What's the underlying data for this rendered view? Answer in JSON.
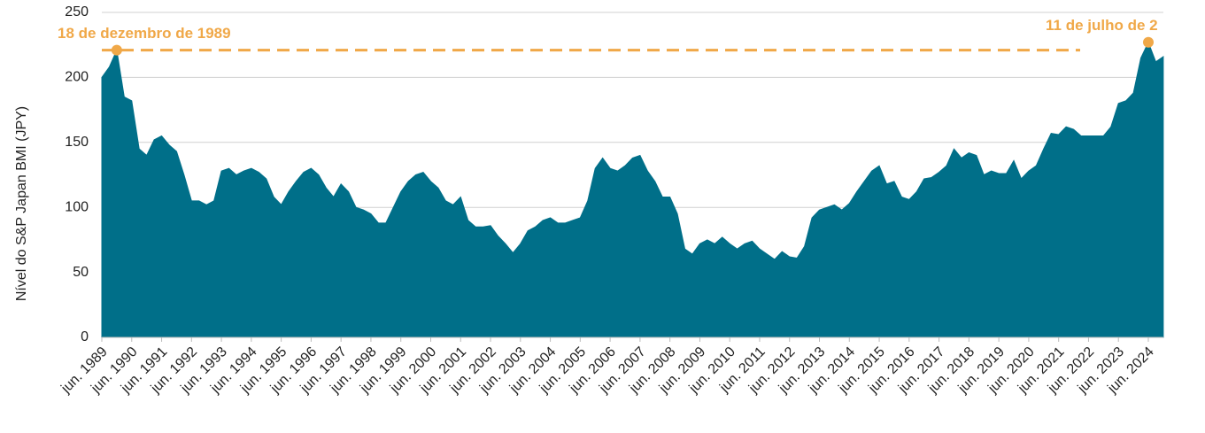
{
  "chart_data": {
    "type": "area",
    "y_label": "Nível do S&P Japan BMI (JPY)",
    "color": "#006f89",
    "annotation_color": "#f0a848",
    "grid": true,
    "ylim": [
      0,
      250
    ],
    "yticks": [
      0,
      50,
      100,
      150,
      200,
      250
    ],
    "reference_line": 221,
    "annotations": [
      {
        "text": "18 de dezembro de 1989",
        "value": 221
      },
      {
        "text": "11 de julho de 2",
        "value": 227
      }
    ],
    "categories": [
      "jun. 1989",
      null,
      null,
      null,
      "jun. 1990",
      null,
      null,
      null,
      "jun. 1991",
      null,
      null,
      null,
      "jun. 1992",
      null,
      null,
      null,
      "jun. 1993",
      null,
      null,
      null,
      "jun. 1994",
      null,
      null,
      null,
      "jun. 1995",
      null,
      null,
      null,
      "jun. 1996",
      null,
      null,
      null,
      "jun. 1997",
      null,
      null,
      null,
      "jun. 1998",
      null,
      null,
      null,
      "jun. 1999",
      null,
      null,
      null,
      "jun. 2000",
      null,
      null,
      null,
      "jun. 2001",
      null,
      null,
      null,
      "jun. 2002",
      null,
      null,
      null,
      "jun. 2003",
      null,
      null,
      null,
      "jun. 2004",
      null,
      null,
      null,
      "jun. 2005",
      null,
      null,
      null,
      "jun. 2006",
      null,
      null,
      null,
      "jun. 2007",
      null,
      null,
      null,
      "jun. 2008",
      null,
      null,
      null,
      "jun. 2009",
      null,
      null,
      null,
      "jun. 2010",
      null,
      null,
      null,
      "jun. 2011",
      null,
      null,
      null,
      "jun. 2012",
      null,
      null,
      null,
      "jun. 2013",
      null,
      null,
      null,
      "jun. 2014",
      null,
      null,
      null,
      "jun. 2015",
      null,
      null,
      null,
      "jun. 2016",
      null,
      null,
      null,
      "jun. 2017",
      null,
      null,
      null,
      "jun. 2018",
      null,
      null,
      null,
      "jun. 2019",
      null,
      null,
      null,
      "jun. 2020",
      null,
      null,
      null,
      "jun. 2021",
      null,
      null,
      null,
      "jun. 2022",
      null,
      null,
      null,
      "jun. 2023",
      null,
      null,
      null,
      "jun. 2024",
      null,
      null
    ],
    "values": [
      200,
      208,
      221,
      185,
      182,
      145,
      140,
      152,
      155,
      148,
      143,
      125,
      105,
      105,
      102,
      105,
      128,
      130,
      125,
      128,
      130,
      127,
      122,
      108,
      102,
      112,
      120,
      127,
      130,
      125,
      115,
      108,
      118,
      112,
      100,
      98,
      95,
      88,
      88,
      100,
      112,
      120,
      125,
      127,
      120,
      115,
      105,
      102,
      108,
      90,
      85,
      85,
      86,
      78,
      72,
      65,
      72,
      82,
      85,
      90,
      92,
      88,
      88,
      90,
      92,
      105,
      130,
      138,
      130,
      128,
      132,
      138,
      140,
      128,
      120,
      108,
      108,
      95,
      68,
      64,
      72,
      75,
      72,
      77,
      72,
      68,
      72,
      74,
      68,
      64,
      60,
      66,
      62,
      61,
      70,
      92,
      98,
      100,
      102,
      98,
      103,
      112,
      120,
      128,
      132,
      118,
      120,
      108,
      106,
      112,
      122,
      123,
      127,
      132,
      145,
      138,
      142,
      140,
      125,
      128,
      126,
      126,
      136,
      122,
      128,
      132,
      145,
      157,
      156,
      162,
      160,
      155,
      155,
      155,
      155,
      162,
      180,
      182,
      188,
      215,
      227,
      212,
      216
    ]
  }
}
